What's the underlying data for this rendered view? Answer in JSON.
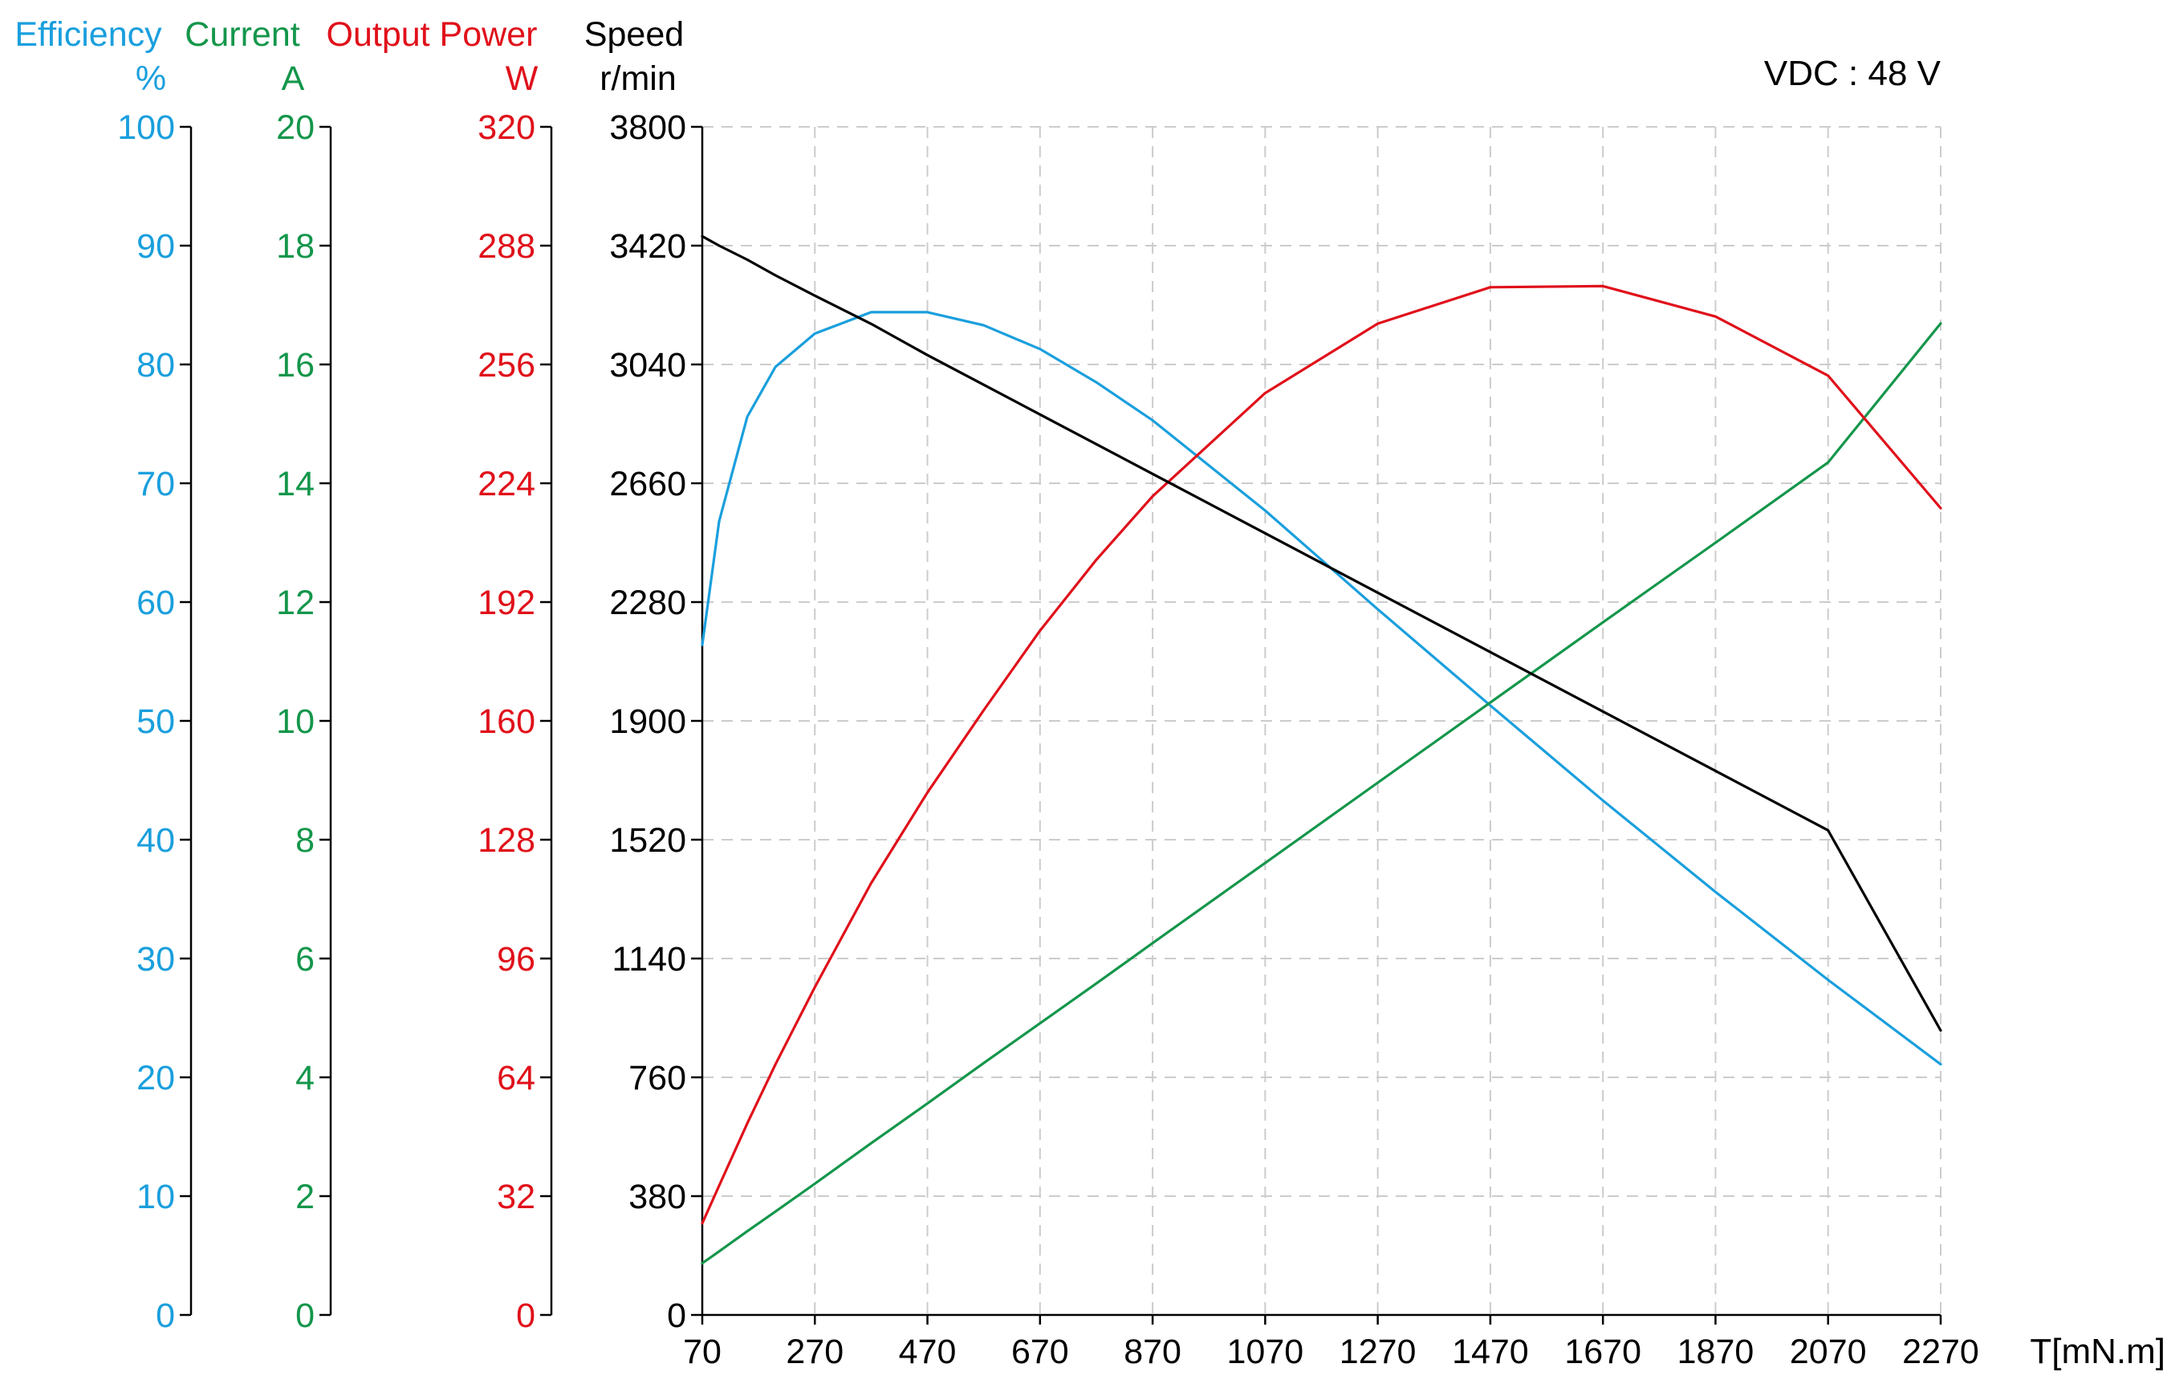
{
  "colors": {
    "efficiency": "#1a9fdd",
    "current": "#14964b",
    "power": "#e0101a",
    "speed": "#000000",
    "grid": "#cccccc"
  },
  "annotation": "VDC : 48 V",
  "axes": {
    "efficiency": {
      "title": "Efficiency",
      "unit": "%",
      "ticks": [
        "0",
        "10",
        "20",
        "30",
        "40",
        "50",
        "60",
        "70",
        "80",
        "90",
        "100"
      ]
    },
    "current": {
      "title": "Current",
      "unit": "A",
      "ticks": [
        "0",
        "2",
        "4",
        "6",
        "8",
        "10",
        "12",
        "14",
        "16",
        "18",
        "20"
      ]
    },
    "power": {
      "title": "Output Power",
      "unit": "W",
      "ticks": [
        "0",
        "32",
        "64",
        "96",
        "128",
        "160",
        "192",
        "224",
        "256",
        "288",
        "320"
      ]
    },
    "speed": {
      "title": "Speed",
      "unit": "r/min",
      "ticks": [
        "0",
        "380",
        "760",
        "1140",
        "1520",
        "1900",
        "2280",
        "2660",
        "3040",
        "3420",
        "3800"
      ]
    },
    "x": {
      "label": "T[mN.m]",
      "ticks": [
        "70",
        "270",
        "470",
        "670",
        "870",
        "1070",
        "1270",
        "1470",
        "1670",
        "1870",
        "2070",
        "2270"
      ]
    }
  },
  "chart_data": {
    "type": "line",
    "xlabel": "T[mN.m]",
    "xlim": [
      70,
      2270
    ],
    "grid": true,
    "annotation": "VDC : 48 V",
    "y_axes": [
      {
        "name": "Efficiency",
        "unit": "%",
        "lim": [
          0,
          100
        ]
      },
      {
        "name": "Current",
        "unit": "A",
        "lim": [
          0,
          20
        ]
      },
      {
        "name": "Output Power",
        "unit": "W",
        "lim": [
          0,
          320
        ]
      },
      {
        "name": "Speed",
        "unit": "r/min",
        "lim": [
          0,
          3800
        ]
      }
    ],
    "x": [
      70,
      100,
      150,
      200,
      270,
      370,
      470,
      570,
      670,
      770,
      870,
      1070,
      1270,
      1470,
      1670,
      1870,
      2070,
      2270
    ],
    "series": [
      {
        "name": "Efficiency",
        "axis": "Efficiency",
        "unit": "%",
        "color": "#1a9fdd",
        "values": [
          56.4,
          66.8,
          75.6,
          79.8,
          82.6,
          84.4,
          84.4,
          83.3,
          81.3,
          78.5,
          75.3,
          67.7,
          59.4,
          51.3,
          43.3,
          35.6,
          28.2,
          21.1
        ]
      },
      {
        "name": "Current",
        "axis": "Current",
        "unit": "A",
        "color": "#14964b",
        "values": [
          0.87,
          1.07,
          1.41,
          1.74,
          2.21,
          2.89,
          3.56,
          4.24,
          4.91,
          5.58,
          6.26,
          7.61,
          8.96,
          10.31,
          11.66,
          13.0,
          14.35,
          16.69
        ]
      },
      {
        "name": "Output Power",
        "axis": "Output Power",
        "unit": "W",
        "color": "#e0101a",
        "values": [
          24.7,
          34.8,
          51.6,
          67.5,
          88.3,
          116.3,
          140.7,
          162.9,
          184.3,
          203.4,
          220.5,
          248.3,
          267.0,
          276.8,
          277.1,
          268.9,
          253.0,
          217.3
        ]
      },
      {
        "name": "Speed",
        "axis": "Speed",
        "unit": "r/min",
        "color": "#000000",
        "values": [
          3450,
          3420,
          3375,
          3325,
          3260,
          3170,
          3070,
          2975,
          2880,
          2785,
          2690,
          2500,
          2310,
          2120,
          1930,
          1740,
          1550,
          910
        ]
      }
    ]
  }
}
